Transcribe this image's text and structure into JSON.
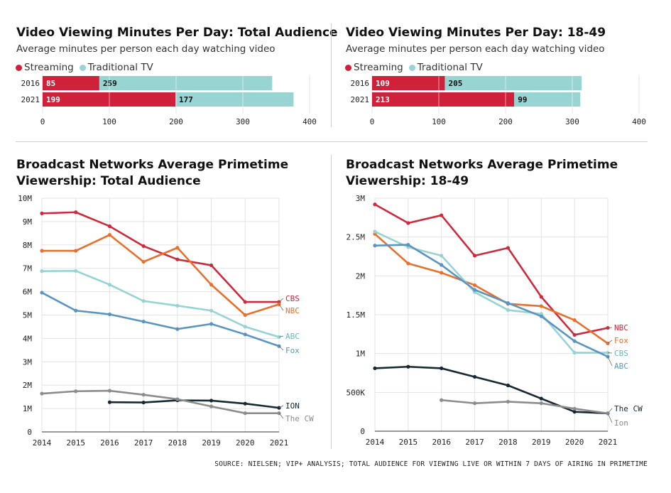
{
  "colors": {
    "streaming": "#d0213b",
    "traditional": "#97d4d2",
    "cbs_total": "#cc2a3d",
    "nbc": "#e8702d",
    "abc_total": "#96d4d4",
    "fox_total": "#5a95c0",
    "ion": "#162833",
    "cw": "#8c8c8c",
    "grid": "#e3e3e3"
  },
  "panels": {
    "bar_total": {
      "title": "Video Viewing Minutes Per Day: Total Audience",
      "subtitle": "Average minutes per person each day watching video",
      "legend": [
        "Streaming",
        "Traditional TV"
      ]
    },
    "bar_1849": {
      "title": "Video Viewing Minutes Per Day: 18-49",
      "subtitle": "Average minutes per person each day watching video",
      "legend": [
        "Streaming",
        "Traditional TV"
      ]
    },
    "line_total": {
      "title_line1": "Broadcast Networks Average Primetime",
      "title_line2": "Viewership: Total Audience"
    },
    "line_1849": {
      "title_line1": "Broadcast Networks Average Primetime",
      "title_line2": "Viewership: 18-49"
    }
  },
  "source": "SOURCE: NIELSEN; VIP+ ANALYSIS; TOTAL AUDIENCE FOR VIEWING LIVE OR WITHIN 7 DAYS OF AIRING IN PRIMETIME",
  "chart_data": [
    {
      "type": "bar",
      "orientation": "horizontal",
      "stacked": true,
      "title": "Video Viewing Minutes Per Day: Total Audience",
      "subtitle": "Average minutes per person each day watching video",
      "categories": [
        "2016",
        "2021"
      ],
      "series": [
        {
          "name": "Streaming",
          "values": [
            85,
            199
          ]
        },
        {
          "name": "Traditional TV",
          "values": [
            259,
            177
          ]
        }
      ],
      "xlim": [
        0,
        400
      ],
      "xticks": [
        0,
        100,
        200,
        300,
        400
      ],
      "grid": true,
      "legend": "top-left"
    },
    {
      "type": "bar",
      "orientation": "horizontal",
      "stacked": true,
      "title": "Video Viewing Minutes Per Day: 18-49",
      "subtitle": "Average minutes per person each day watching video",
      "categories": [
        "2016",
        "2021"
      ],
      "series": [
        {
          "name": "Streaming",
          "values": [
            109,
            213
          ]
        },
        {
          "name": "Traditional TV",
          "values": [
            205,
            99
          ]
        }
      ],
      "xlim": [
        0,
        400
      ],
      "xticks": [
        0,
        100,
        200,
        300,
        400
      ],
      "grid": true,
      "legend": "top-left"
    },
    {
      "type": "line",
      "title": "Broadcast Networks Average Primetime Viewership: Total Audience",
      "x": [
        2014,
        2015,
        2016,
        2017,
        2018,
        2019,
        2020,
        2021
      ],
      "ylim": [
        0,
        10000000
      ],
      "yticks": [
        0,
        1000000,
        2000000,
        3000000,
        4000000,
        5000000,
        6000000,
        7000000,
        8000000,
        9000000,
        10000000
      ],
      "ytick_labels": [
        "0",
        "1M",
        "2M",
        "3M",
        "4M",
        "5M",
        "6M",
        "7M",
        "8M",
        "9M",
        "10M"
      ],
      "grid": true,
      "legend": "end-of-line labels",
      "series": [
        {
          "name": "CBS",
          "color": "#cc2a3d",
          "values": [
            9350000,
            9400000,
            8800000,
            7950000,
            7380000,
            7130000,
            5560000,
            5560000
          ]
        },
        {
          "name": "NBC",
          "color": "#e8702d",
          "values": [
            7750000,
            7750000,
            8430000,
            7280000,
            7880000,
            6300000,
            5000000,
            5460000
          ]
        },
        {
          "name": "ABC",
          "color": "#96d4d4",
          "values": [
            6880000,
            6890000,
            6300000,
            5600000,
            5400000,
            5190000,
            4500000,
            4060000
          ]
        },
        {
          "name": "Fox",
          "color": "#5a95c0",
          "values": [
            5960000,
            5190000,
            5030000,
            4720000,
            4400000,
            4620000,
            4170000,
            3670000
          ]
        },
        {
          "name": "ION",
          "color": "#162833",
          "values": [
            null,
            null,
            1270000,
            1260000,
            1350000,
            1340000,
            1210000,
            1030000
          ]
        },
        {
          "name": "The CW",
          "color": "#8c8c8c",
          "values": [
            1640000,
            1740000,
            1760000,
            1590000,
            1400000,
            1090000,
            800000,
            800000
          ]
        }
      ]
    },
    {
      "type": "line",
      "title": "Broadcast Networks Average Primetime Viewership: 18-49",
      "x": [
        2014,
        2015,
        2016,
        2017,
        2018,
        2019,
        2020,
        2021
      ],
      "ylim": [
        0,
        3000000
      ],
      "yticks": [
        0,
        500000,
        1000000,
        1500000,
        2000000,
        2500000,
        3000000
      ],
      "ytick_labels": [
        "0",
        "500K",
        "1M",
        "1.5M",
        "2M",
        "2.5M",
        "3M"
      ],
      "grid": true,
      "legend": "end-of-line labels",
      "series": [
        {
          "name": "NBC",
          "color": "#cc2a3d",
          "values": [
            2920000,
            2680000,
            2780000,
            2260000,
            2360000,
            1730000,
            1240000,
            1330000
          ]
        },
        {
          "name": "Fox",
          "color": "#e8702d",
          "values": [
            2540000,
            2160000,
            2040000,
            1880000,
            1640000,
            1610000,
            1430000,
            1130000
          ]
        },
        {
          "name": "CBS",
          "color": "#96d4d4",
          "values": [
            2570000,
            2370000,
            2260000,
            1790000,
            1560000,
            1510000,
            1010000,
            1010000
          ]
        },
        {
          "name": "ABC",
          "color": "#5a95c0",
          "values": [
            2390000,
            2400000,
            2140000,
            1820000,
            1650000,
            1480000,
            1160000,
            960000
          ]
        },
        {
          "name": "The CW",
          "color": "#162833",
          "values": [
            810000,
            830000,
            810000,
            700000,
            590000,
            420000,
            250000,
            230000
          ]
        },
        {
          "name": "Ion",
          "color": "#8c8c8c",
          "values": [
            null,
            null,
            400000,
            360000,
            380000,
            360000,
            290000,
            230000
          ]
        }
      ]
    }
  ]
}
